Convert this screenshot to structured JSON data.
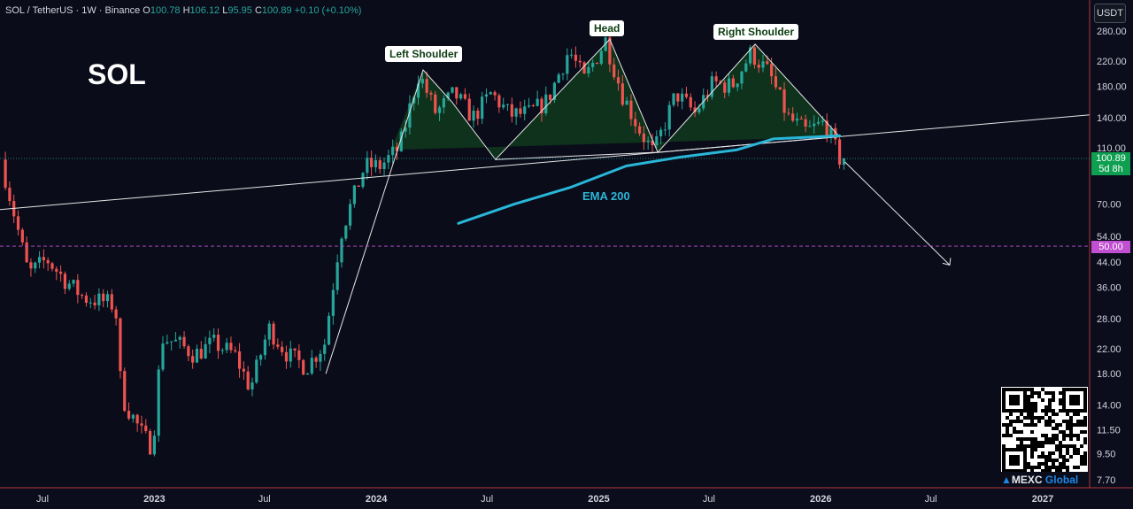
{
  "header": {
    "symbol": "SOL / TetherUS · 1W · Binance",
    "o_label": "O",
    "o_value": "100.78",
    "h_label": "H",
    "h_value": "106.12",
    "l_label": "L",
    "l_value": "95.95",
    "c_label": "C",
    "c_value": "100.89",
    "change": "+0.10 (+0.10%)"
  },
  "ticker_title": "SOL",
  "ema_label": "EMA 200",
  "unit": "USDT",
  "price_tag": {
    "price": "100.89",
    "countdown": "5d 8h"
  },
  "level_tag": "50.00",
  "brand": {
    "name": "MEXC",
    "suffix": " Global"
  },
  "colors": {
    "background": "#0b0d1c",
    "up": "#26a69a",
    "down": "#ef5350",
    "ema": "#29b6d8",
    "pattern_fill": "#0f3a1c",
    "level": "#c14fd1",
    "price_tag": "#0e9f50"
  },
  "chart_data": {
    "type": "candlestick",
    "y_scale": "log",
    "ylim": [
      7.5,
      300
    ],
    "yticks": [
      "280.00",
      "220.00",
      "180.00",
      "140.00",
      "110.00",
      "70.00",
      "54.00",
      "44.00",
      "36.00",
      "28.00",
      "22.00",
      "18.00",
      "14.00",
      "11.50",
      "9.50",
      "7.70"
    ],
    "xticks": [
      "Jul",
      "2023",
      "Jul",
      "2024",
      "Jul",
      "2025",
      "Jul",
      "2026",
      "Jul",
      "2027"
    ],
    "price_path": [
      [
        "2022-05-01",
        100
      ],
      [
        "2022-05-20",
        68
      ],
      [
        "2022-06-15",
        40
      ],
      [
        "2022-07-15",
        45
      ],
      [
        "2022-08-15",
        38
      ],
      [
        "2022-09-15",
        33
      ],
      [
        "2022-10-20",
        32
      ],
      [
        "2022-11-05",
        31
      ],
      [
        "2022-11-15",
        15
      ],
      [
        "2022-12-20",
        11
      ],
      [
        "2023-01-05",
        10
      ],
      [
        "2023-01-20",
        24
      ],
      [
        "2023-02-15",
        23
      ],
      [
        "2023-03-15",
        21
      ],
      [
        "2023-04-15",
        23
      ],
      [
        "2023-05-20",
        21
      ],
      [
        "2023-06-15",
        16
      ],
      [
        "2023-07-15",
        26
      ],
      [
        "2023-08-15",
        21
      ],
      [
        "2023-09-15",
        19
      ],
      [
        "2023-10-15",
        23
      ],
      [
        "2023-11-10",
        55
      ],
      [
        "2023-12-20",
        95
      ],
      [
        "2024-01-15",
        95
      ],
      [
        "2024-02-15",
        110
      ],
      [
        "2024-03-18",
        200
      ],
      [
        "2024-04-15",
        145
      ],
      [
        "2024-05-15",
        170
      ],
      [
        "2024-06-15",
        140
      ],
      [
        "2024-07-15",
        170
      ],
      [
        "2024-08-15",
        143
      ],
      [
        "2024-09-15",
        145
      ],
      [
        "2024-10-15",
        160
      ],
      [
        "2024-11-20",
        240
      ],
      [
        "2024-12-15",
        190
      ],
      [
        "2025-01-19",
        260
      ],
      [
        "2025-02-15",
        170
      ],
      [
        "2025-03-15",
        128
      ],
      [
        "2025-04-08",
        105
      ],
      [
        "2025-05-15",
        170
      ],
      [
        "2025-06-15",
        145
      ],
      [
        "2025-07-15",
        185
      ],
      [
        "2025-08-15",
        180
      ],
      [
        "2025-09-15",
        235
      ],
      [
        "2025-10-15",
        200
      ],
      [
        "2025-11-15",
        140
      ],
      [
        "2025-12-15",
        125
      ],
      [
        "2026-01-15",
        135
      ],
      [
        "2026-02-08",
        100.89
      ]
    ],
    "ema200": [
      [
        "2024-05-15",
        60
      ],
      [
        "2024-08-15",
        70
      ],
      [
        "2024-11-15",
        80
      ],
      [
        "2025-02-15",
        95
      ],
      [
        "2025-05-15",
        102
      ],
      [
        "2025-08-15",
        108
      ],
      [
        "2025-10-15",
        118
      ],
      [
        "2026-02-01",
        121
      ]
    ],
    "annotations": {
      "left_shoulder": {
        "text": "Left Shoulder",
        "date": "2024-03-18",
        "price": 205
      },
      "head": {
        "text": "Head",
        "date": "2025-01-19",
        "price": 262
      },
      "right_shoulder": {
        "text": "Right Shoulder",
        "date": "2025-09-15",
        "price": 252
      },
      "neckline": [
        [
          "2024-07-15",
          100
        ],
        [
          "2025-04-08",
          106
        ],
        [
          "2026-02-01",
          120
        ]
      ],
      "trendline": [
        [
          "2022-05-01",
          67
        ],
        [
          "2027-01-01",
          143
        ]
      ],
      "support_level": 50,
      "projection": [
        [
          "2026-02-10",
          98
        ],
        [
          "2026-08-01",
          43
        ]
      ]
    }
  }
}
